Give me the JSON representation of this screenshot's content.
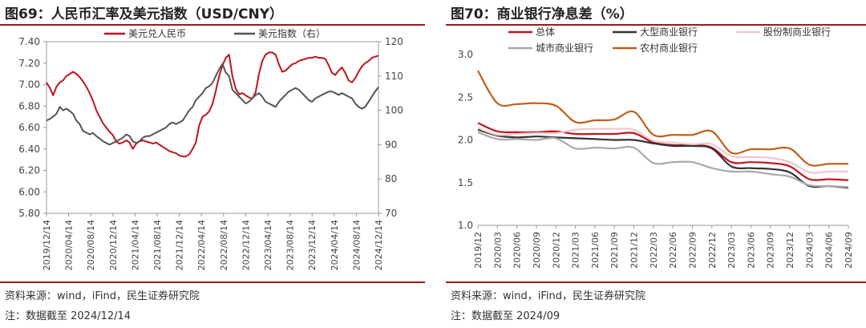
{
  "left": {
    "title": "图69：人民币汇率及美元指数（USD/CNY）",
    "source": "资料来源：wind，iFind，民生证券研究院",
    "note": "注：数据截至 2024/12/14"
  },
  "right": {
    "title": "图70：商业银行净息差（%）",
    "source": "资料来源：wind，iFind，民生证券研究院",
    "note": "注：数据截至 2024/09"
  },
  "chart_data": [
    {
      "type": "line",
      "title": "",
      "legend_placement": "top",
      "grid": false,
      "x_ticks": [
        "2019/12/14",
        "2020/04/14",
        "2020/08/14",
        "2020/12/14",
        "2021/04/14",
        "2021/08/14",
        "2021/12/14",
        "2022/04/14",
        "2022/08/14",
        "2022/12/14",
        "2023/04/14",
        "2023/08/14",
        "2023/12/14",
        "2024/04/14",
        "2024/08/14",
        "2024/12/14"
      ],
      "y_left": {
        "ylim": [
          5.8,
          7.4
        ],
        "ticks": [
          "5.80",
          "6.00",
          "6.20",
          "6.40",
          "6.60",
          "6.80",
          "7.00",
          "7.20",
          "7.40"
        ]
      },
      "y_right": {
        "ylim": [
          70,
          120
        ],
        "ticks": [
          "70",
          "80",
          "90",
          "100",
          "110",
          "120"
        ]
      },
      "series": [
        {
          "name": "美元兑人民币",
          "axis": "left",
          "color": "#c0141c",
          "x": [
            2019.95,
            2020.0,
            2020.05,
            2020.1,
            2020.15,
            2020.2,
            2020.25,
            2020.3,
            2020.35,
            2020.4,
            2020.45,
            2020.5,
            2020.55,
            2020.6,
            2020.65,
            2020.7,
            2020.75,
            2020.8,
            2020.85,
            2020.9,
            2020.95,
            2021.0,
            2021.05,
            2021.1,
            2021.15,
            2021.2,
            2021.25,
            2021.3,
            2021.35,
            2021.4,
            2021.45,
            2021.5,
            2021.55,
            2021.6,
            2021.65,
            2021.7,
            2021.75,
            2021.8,
            2021.85,
            2021.9,
            2021.95,
            2022.0,
            2022.05,
            2022.1,
            2022.15,
            2022.2,
            2022.25,
            2022.3,
            2022.35,
            2022.4,
            2022.45,
            2022.5,
            2022.55,
            2022.6,
            2022.65,
            2022.7,
            2022.75,
            2022.8,
            2022.85,
            2022.9,
            2022.95,
            2023.0,
            2023.05,
            2023.1,
            2023.15,
            2023.2,
            2023.25,
            2023.3,
            2023.35,
            2023.4,
            2023.45,
            2023.5,
            2023.55,
            2023.6,
            2023.65,
            2023.7,
            2023.75,
            2023.8,
            2023.85,
            2023.9,
            2023.95,
            2024.0,
            2024.05,
            2024.1,
            2024.15,
            2024.2,
            2024.25,
            2024.3,
            2024.35,
            2024.4,
            2024.45,
            2024.5,
            2024.55,
            2024.6,
            2024.65,
            2024.7,
            2024.75,
            2024.8,
            2024.85,
            2024.9,
            2024.95
          ],
          "values": [
            7.02,
            6.97,
            6.9,
            6.98,
            7.02,
            7.04,
            7.08,
            7.1,
            7.12,
            7.1,
            7.07,
            7.03,
            6.98,
            6.92,
            6.85,
            6.76,
            6.7,
            6.64,
            6.6,
            6.56,
            6.53,
            6.47,
            6.45,
            6.46,
            6.48,
            6.46,
            6.4,
            6.45,
            6.47,
            6.48,
            6.47,
            6.46,
            6.45,
            6.46,
            6.44,
            6.42,
            6.4,
            6.38,
            6.37,
            6.36,
            6.34,
            6.33,
            6.33,
            6.35,
            6.4,
            6.46,
            6.62,
            6.7,
            6.72,
            6.75,
            6.82,
            6.94,
            7.08,
            7.18,
            7.25,
            7.28,
            7.08,
            6.96,
            6.91,
            6.92,
            6.9,
            6.88,
            6.87,
            6.93,
            7.1,
            7.22,
            7.28,
            7.3,
            7.3,
            7.28,
            7.19,
            7.12,
            7.13,
            7.16,
            7.19,
            7.2,
            7.22,
            7.23,
            7.24,
            7.25,
            7.25,
            7.26,
            7.25,
            7.25,
            7.24,
            7.18,
            7.11,
            7.09,
            7.13,
            7.16,
            7.11,
            7.04,
            7.02,
            7.06,
            7.12,
            7.17,
            7.2,
            7.22,
            7.25,
            7.26,
            7.27
          ]
        },
        {
          "name": "美元指数（右）",
          "axis": "right",
          "color": "#555555",
          "x": [
            2019.95,
            2020.0,
            2020.05,
            2020.1,
            2020.15,
            2020.2,
            2020.25,
            2020.3,
            2020.35,
            2020.4,
            2020.45,
            2020.5,
            2020.55,
            2020.6,
            2020.65,
            2020.7,
            2020.75,
            2020.8,
            2020.85,
            2020.9,
            2020.95,
            2021.0,
            2021.05,
            2021.1,
            2021.15,
            2021.2,
            2021.25,
            2021.3,
            2021.35,
            2021.4,
            2021.45,
            2021.5,
            2021.55,
            2021.6,
            2021.65,
            2021.7,
            2021.75,
            2021.8,
            2021.85,
            2021.9,
            2021.95,
            2022.0,
            2022.05,
            2022.1,
            2022.15,
            2022.2,
            2022.25,
            2022.3,
            2022.35,
            2022.4,
            2022.45,
            2022.5,
            2022.55,
            2022.6,
            2022.65,
            2022.7,
            2022.75,
            2022.8,
            2022.85,
            2022.9,
            2022.95,
            2023.0,
            2023.05,
            2023.1,
            2023.15,
            2023.2,
            2023.25,
            2023.3,
            2023.35,
            2023.4,
            2023.45,
            2023.5,
            2023.55,
            2023.6,
            2023.65,
            2023.7,
            2023.75,
            2023.8,
            2023.85,
            2023.9,
            2023.95,
            2024.0,
            2024.05,
            2024.1,
            2024.15,
            2024.2,
            2024.25,
            2024.3,
            2024.35,
            2024.4,
            2024.45,
            2024.5,
            2024.55,
            2024.6,
            2024.65,
            2024.7,
            2024.75,
            2024.8,
            2024.85,
            2024.9,
            2024.95
          ],
          "values": [
            97.0,
            97.5,
            98.2,
            99.0,
            101.0,
            100.0,
            100.5,
            99.8,
            99.0,
            97.0,
            96.0,
            94.0,
            93.5,
            93.0,
            93.4,
            92.5,
            91.8,
            91.0,
            90.5,
            90.0,
            90.5,
            91.0,
            91.5,
            92.0,
            93.0,
            92.5,
            91.0,
            90.5,
            91.0,
            92.0,
            92.5,
            92.5,
            93.0,
            93.5,
            94.0,
            94.5,
            95.0,
            96.0,
            96.5,
            96.0,
            96.5,
            97.0,
            98.5,
            100.0,
            101.0,
            103.0,
            104.0,
            105.0,
            106.5,
            107.0,
            108.0,
            110.0,
            112.0,
            113.5,
            111.0,
            110.0,
            106.0,
            105.0,
            104.0,
            103.0,
            102.0,
            102.5,
            103.5,
            104.5,
            105.0,
            104.0,
            102.5,
            102.0,
            101.5,
            101.0,
            102.5,
            103.5,
            104.5,
            105.5,
            106.0,
            106.5,
            106.0,
            105.0,
            104.0,
            103.0,
            102.5,
            103.5,
            104.0,
            104.5,
            105.0,
            105.5,
            105.5,
            105.0,
            104.5,
            105.0,
            104.5,
            104.0,
            103.5,
            102.0,
            101.0,
            100.5,
            101.0,
            102.5,
            104.0,
            105.5,
            106.8
          ]
        }
      ]
    },
    {
      "type": "line",
      "title": "",
      "legend_placement": "top",
      "grid": false,
      "categories": [
        "2019/12",
        "2020/03",
        "2020/06",
        "2020/09",
        "2020/12",
        "2021/03",
        "2021/06",
        "2021/09",
        "2021/12",
        "2022/03",
        "2022/06",
        "2022/09",
        "2022/12",
        "2023/03",
        "2023/06",
        "2023/09",
        "2023/12",
        "2024/03",
        "2024/06",
        "2024/09"
      ],
      "ylim": [
        1.0,
        3.0
      ],
      "y_ticks": [
        "1.0",
        "1.5",
        "2.0",
        "2.5",
        "3.0"
      ],
      "series": [
        {
          "name": "总体",
          "color": "#c0141c",
          "values": [
            2.2,
            2.1,
            2.09,
            2.09,
            2.1,
            2.07,
            2.07,
            2.07,
            2.08,
            1.97,
            1.94,
            1.94,
            1.91,
            1.74,
            1.74,
            1.73,
            1.69,
            1.54,
            1.54,
            1.53
          ]
        },
        {
          "name": "大型商业银行",
          "color": "#333333",
          "values": [
            2.12,
            2.05,
            2.03,
            2.04,
            2.03,
            2.02,
            2.01,
            2.0,
            2.0,
            1.96,
            1.93,
            1.93,
            1.9,
            1.69,
            1.67,
            1.66,
            1.62,
            1.46,
            1.46,
            1.44
          ]
        },
        {
          "name": "股份制商业银行",
          "color": "#f0c8cc",
          "values": [
            2.14,
            2.06,
            2.07,
            2.08,
            2.08,
            2.12,
            2.13,
            2.13,
            2.12,
            1.99,
            1.97,
            1.95,
            1.95,
            1.81,
            1.8,
            1.79,
            1.74,
            1.62,
            1.63,
            1.63
          ]
        },
        {
          "name": "城市商业银行",
          "color": "#a8a8a8",
          "values": [
            2.09,
            2.01,
            2.01,
            2.0,
            2.02,
            1.9,
            1.91,
            1.9,
            1.91,
            1.73,
            1.74,
            1.74,
            1.67,
            1.63,
            1.63,
            1.6,
            1.57,
            1.47,
            1.46,
            1.45
          ]
        },
        {
          "name": "农村商业银行",
          "color": "#c05f1a",
          "values": [
            2.81,
            2.43,
            2.42,
            2.43,
            2.4,
            2.21,
            2.23,
            2.24,
            2.33,
            2.06,
            2.06,
            2.06,
            2.1,
            1.85,
            1.89,
            1.89,
            1.9,
            1.71,
            1.72,
            1.72
          ]
        }
      ]
    }
  ]
}
